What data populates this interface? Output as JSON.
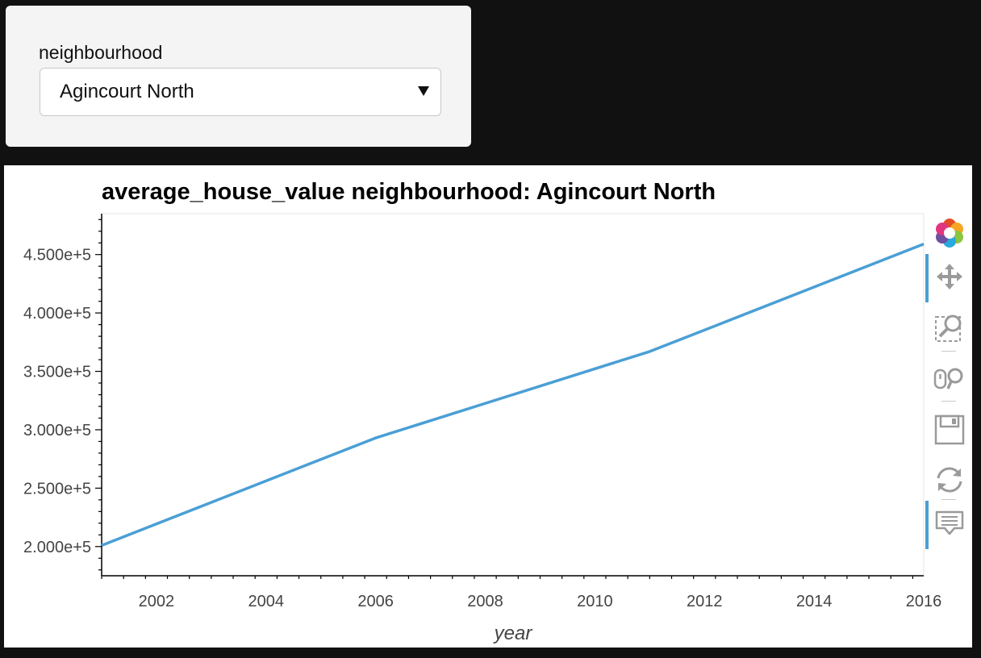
{
  "widget": {
    "label": "neighbourhood",
    "selected": "Agincourt North"
  },
  "plot": {
    "title": "average_house_value  neighbourhood: Agincourt North",
    "toolbar": [
      {
        "name": "bokeh-logo-icon",
        "active": false
      },
      {
        "name": "pan-tool-icon",
        "active": true
      },
      {
        "name": "box-zoom-tool-icon",
        "active": false
      },
      {
        "name": "wheel-zoom-tool-icon",
        "active": false
      },
      {
        "name": "save-tool-icon",
        "active": false
      },
      {
        "name": "reset-tool-icon",
        "active": false
      },
      {
        "name": "hover-tool-icon",
        "active": true
      }
    ]
  },
  "chart_data": {
    "type": "line",
    "title": "average_house_value  neighbourhood: Agincourt North",
    "xlabel": "year",
    "ylabel": "",
    "xlim": [
      2001,
      2016
    ],
    "ylim": [
      175000,
      485000
    ],
    "xticks": [
      2002,
      2004,
      2006,
      2008,
      2010,
      2012,
      2014,
      2016
    ],
    "yticks": [
      200000,
      250000,
      300000,
      350000,
      400000,
      450000
    ],
    "ytick_labels": [
      "2.000e+5",
      "2.500e+5",
      "3.000e+5",
      "3.500e+5",
      "4.000e+5",
      "4.500e+5"
    ],
    "line_color": "#4a9fd5",
    "series": [
      {
        "x": [
          2001,
          2006,
          2011,
          2016
        ],
        "values": [
          201000,
          293000,
          367000,
          459000
        ]
      }
    ]
  }
}
